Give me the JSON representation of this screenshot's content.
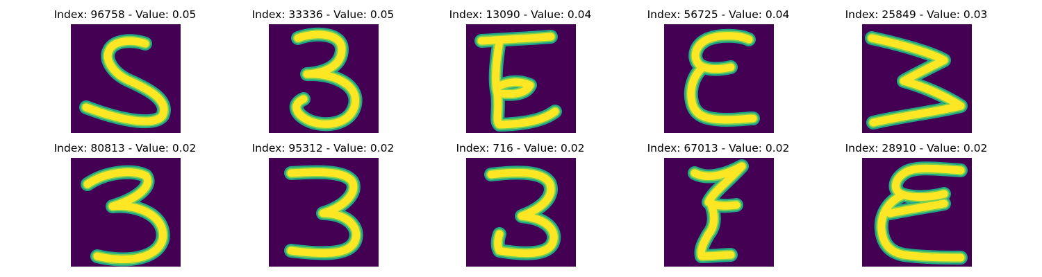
{
  "colors": {
    "background": "#440154",
    "stroke_edge": "#21a585",
    "stroke_mid": "#7ad151",
    "stroke_core": "#fde725"
  },
  "panels": [
    {
      "title": "Index: 96758 - Value: 0.05",
      "glyph": "5"
    },
    {
      "title": "Index: 33336 - Value: 0.05",
      "glyph": "3"
    },
    {
      "title": "Index: 13090 - Value: 0.04",
      "glyph": "E"
    },
    {
      "title": "Index: 56725 - Value: 0.04",
      "glyph": "E"
    },
    {
      "title": "Index: 25849 - Value: 0.03",
      "glyph": "3"
    },
    {
      "title": "Index: 80813 - Value: 0.02",
      "glyph": "3"
    },
    {
      "title": "Index: 95312 - Value: 0.02",
      "glyph": "3"
    },
    {
      "title": "Index: 716 - Value: 0.02",
      "glyph": "3"
    },
    {
      "title": "Index: 67013 - Value: 0.02",
      "glyph": "Z"
    },
    {
      "title": "Index: 28910 - Value: 0.02",
      "glyph": "E"
    }
  ]
}
